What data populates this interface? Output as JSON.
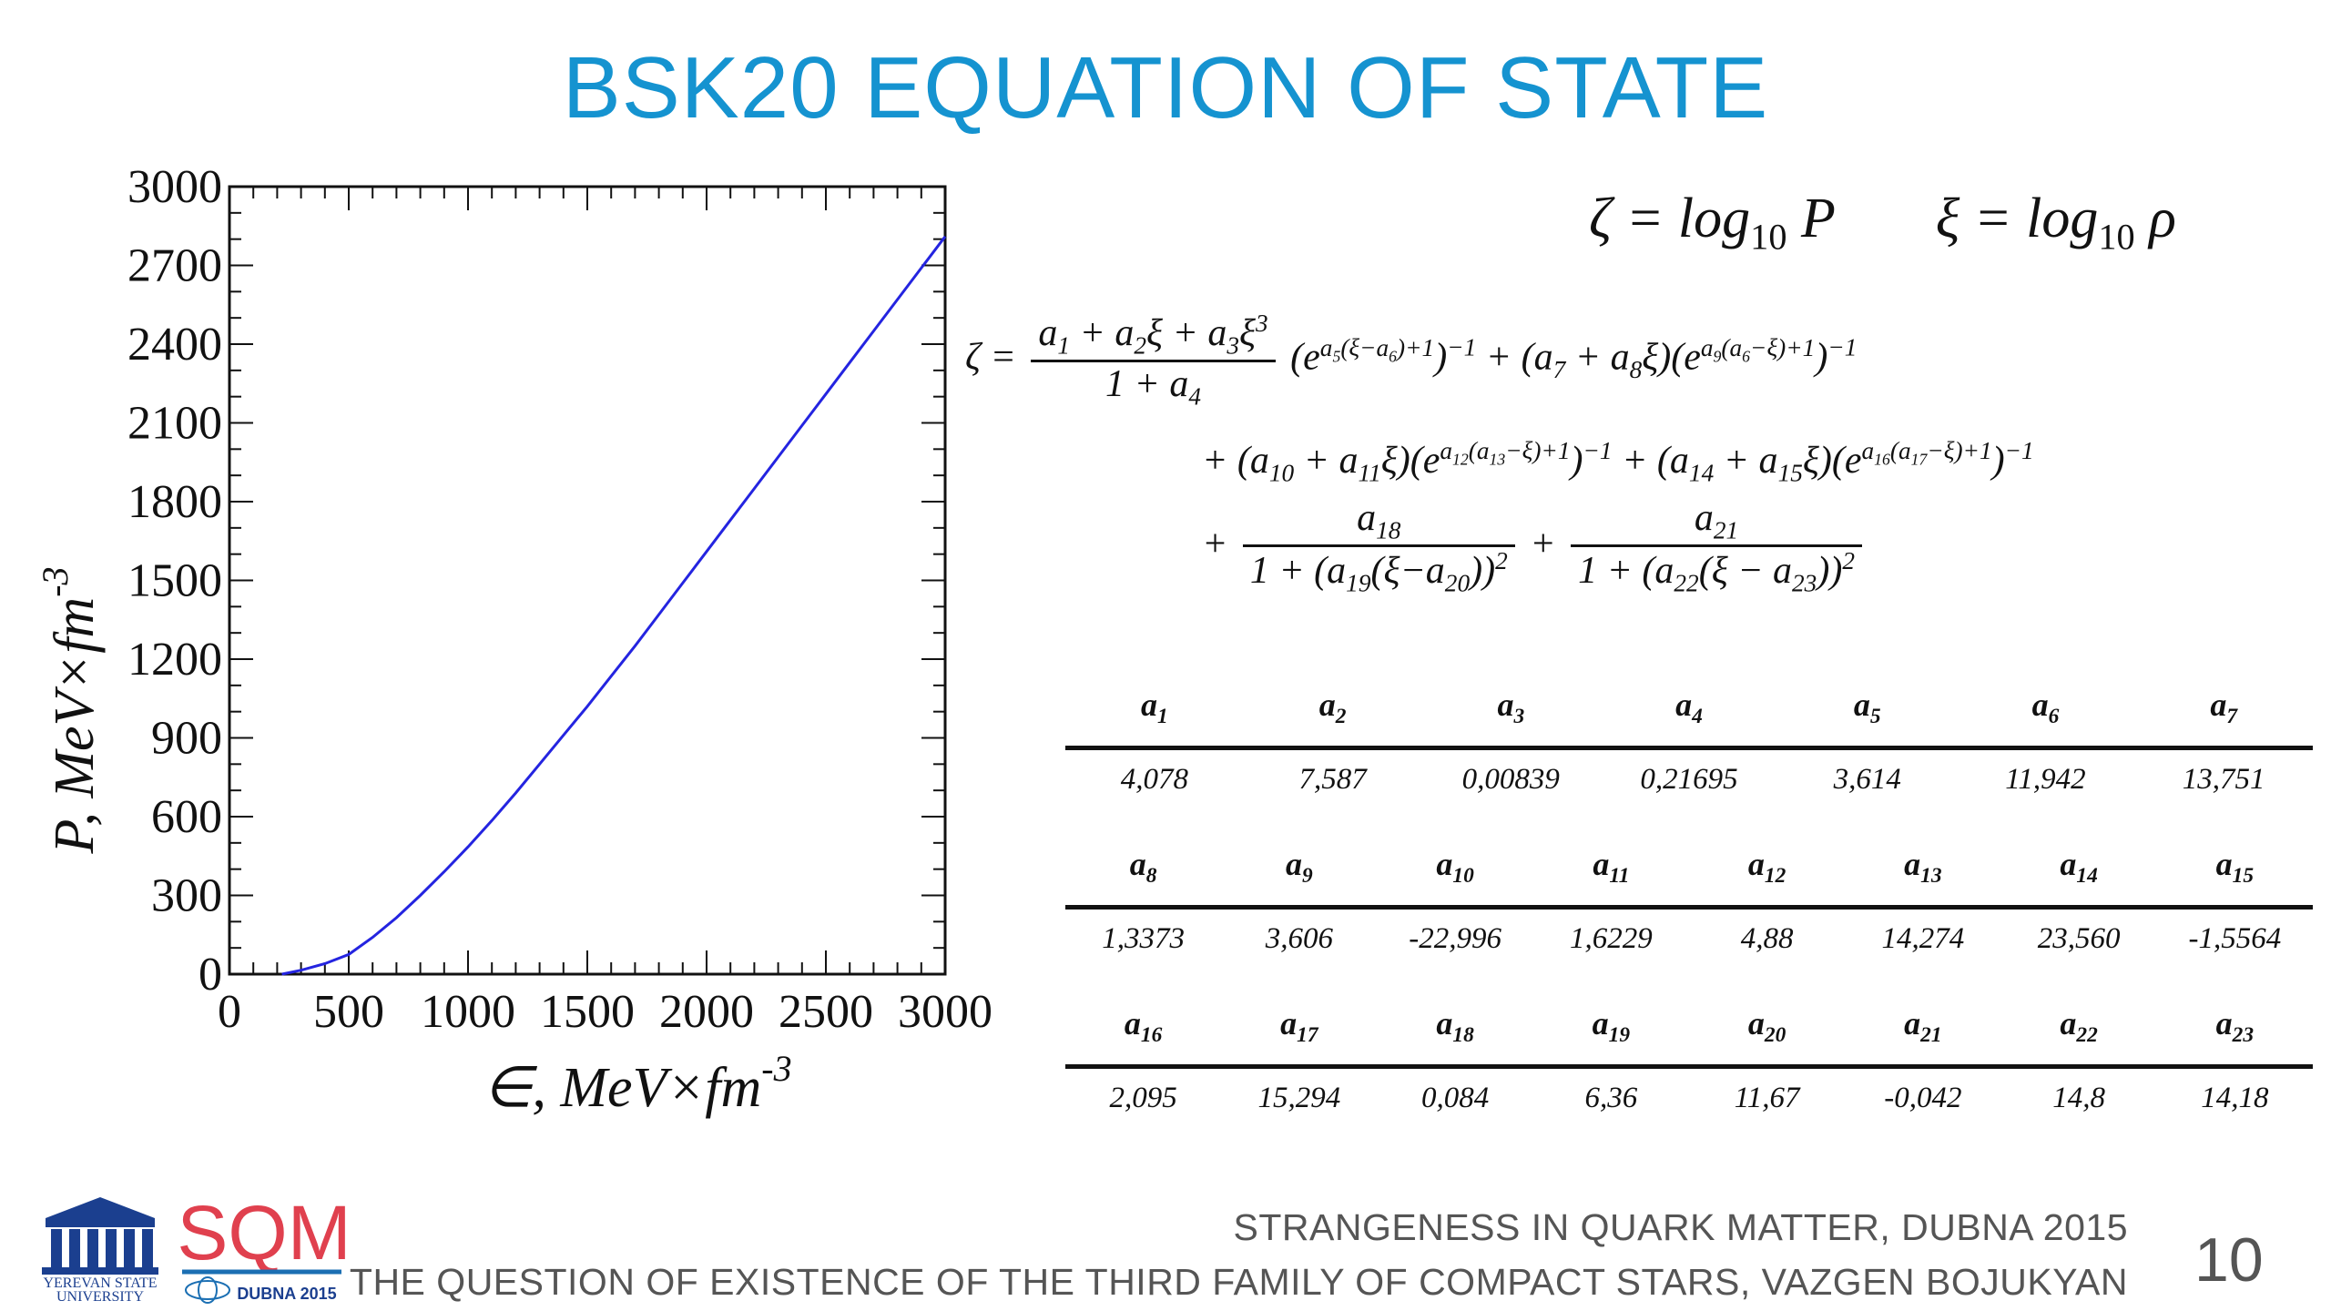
{
  "title": "BSK20 EQUATION OF STATE",
  "chart_data": {
    "type": "line",
    "series": [
      {
        "color": "#2424e0",
        "x": [
          220,
          300,
          400,
          500,
          600,
          700,
          800,
          900,
          1000,
          1100,
          1200,
          1300,
          1400,
          1500,
          1600,
          1700,
          1800,
          1900,
          2000,
          2100,
          2200,
          2300,
          2400,
          2500,
          2600,
          2700,
          2800,
          2900,
          3000
        ],
        "y": [
          0,
          15,
          40,
          75,
          140,
          215,
          300,
          390,
          485,
          585,
          690,
          800,
          910,
          1020,
          1135,
          1250,
          1370,
          1490,
          1610,
          1730,
          1850,
          1970,
          2090,
          2210,
          2330,
          2450,
          2570,
          2690,
          2810
        ]
      }
    ],
    "xlim": [
      0,
      3000
    ],
    "ylim": [
      0,
      3000
    ],
    "x_ticks": [
      "0",
      "500",
      "1000",
      "1500",
      "2000",
      "2500",
      "3000"
    ],
    "y_ticks": [
      "0",
      "300",
      "600",
      "900",
      "1200",
      "1500",
      "1800",
      "2100",
      "2400",
      "2700",
      "3000"
    ],
    "xlabel": "∈, MeV×fm",
    "xlabel_exp": "-3",
    "ylabel": "P, MeV×fm",
    "ylabel_exp": "-3"
  },
  "equations": {
    "def_zeta": "ζ = log",
    "def_zeta_sub": "10",
    "def_zeta_var": "P",
    "def_xi": "ξ = log",
    "def_xi_sub": "10",
    "def_xi_var": "ρ"
  },
  "table": {
    "rows": [
      {
        "headers": [
          "1",
          "2",
          "3",
          "4",
          "5",
          "6",
          "7"
        ],
        "values": [
          "4,078",
          "7,587",
          "0,00839",
          "0,21695",
          "3,614",
          "11,942",
          "13,751"
        ]
      },
      {
        "headers": [
          "8",
          "9",
          "10",
          "11",
          "12",
          "13",
          "14",
          "15"
        ],
        "values": [
          "1,3373",
          "3,606",
          "-22,996",
          "1,6229",
          "4,88",
          "14,274",
          "23,560",
          "-1,5564"
        ]
      },
      {
        "headers": [
          "16",
          "17",
          "18",
          "19",
          "20",
          "21",
          "22",
          "23"
        ],
        "values": [
          "2,095",
          "15,294",
          "0,084",
          "6,36",
          "11,67",
          "-0,042",
          "14,8",
          "14,18"
        ]
      }
    ]
  },
  "footer": {
    "line1": "STRANGENESS IN QUARK MATTER,  DUBNA 2015",
    "line2": "THE QUESTION OF EXISTENCE OF THE THIRD FAMILY OF COMPACT STARS, VAZGEN BOJUKYAN"
  },
  "page_number": "10",
  "logos": {
    "ysu_line1": "YEREVAN STATE",
    "ysu_line2": "UNIVERSITY",
    "sqm_text": "SQM",
    "sqm_sub": "DUBNA 2015"
  }
}
